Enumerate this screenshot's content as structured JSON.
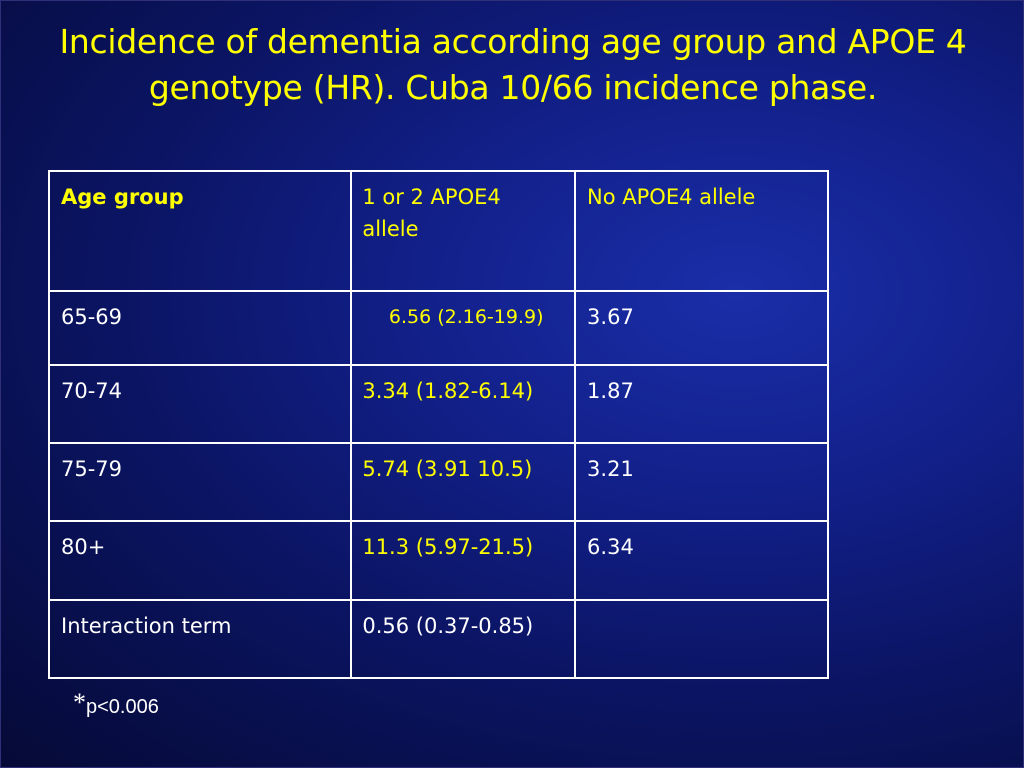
{
  "slide": {
    "title_line1": "Incidence of dementia according age group and APOE 4",
    "title_line2": "genotype (HR). Cuba 10/66 incidence phase."
  },
  "table": {
    "header": {
      "age_group": "Age group",
      "apoe4_1or2_line1": "1 or 2 APOE4",
      "apoe4_1or2_line2": "allele",
      "no_apoe4": "No APOE4 allele"
    },
    "rows": [
      {
        "age": "65-69",
        "apoe4": "6.56 (2.16-19.9)",
        "no_apoe4": "3.67"
      },
      {
        "age": "70-74",
        "apoe4": "3.34 (1.82-6.14)",
        "no_apoe4": "1.87"
      },
      {
        "age": "75-79",
        "apoe4": "5.74 (3.91 10.5)",
        "no_apoe4": "3.21"
      },
      {
        "age": "80+",
        "apoe4": "11.3 (5.97-21.5)",
        "no_apoe4": "6.34"
      },
      {
        "age": "Interaction term",
        "apoe4": "0.56 (0.37-0.85)",
        "no_apoe4": ""
      }
    ]
  },
  "footnote": {
    "star": "*",
    "text": "p<0.006"
  },
  "colors": {
    "title": "#ffff00",
    "highlight": "#ffff00",
    "text": "#ffffff",
    "background": "#0b1462"
  }
}
